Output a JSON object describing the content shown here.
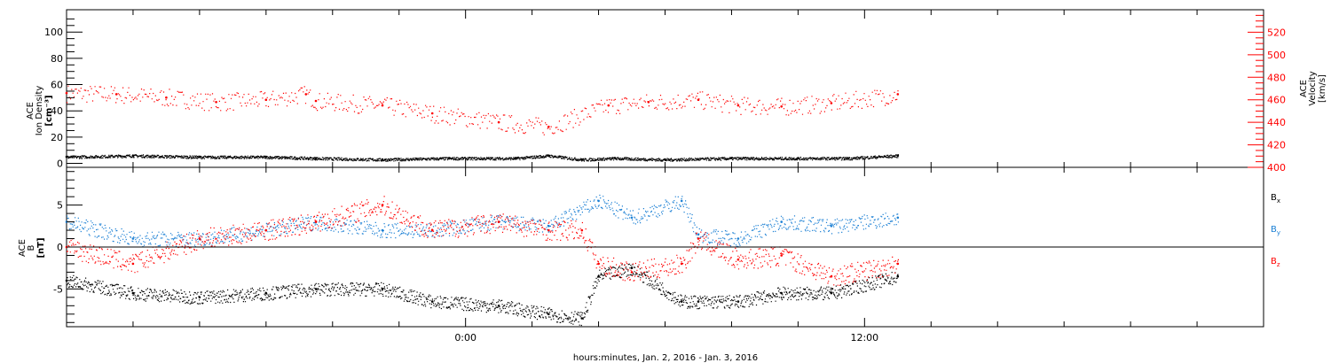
{
  "chart_data": [
    {
      "type": "scatter",
      "panel": "top",
      "ylabel_left": [
        "ACE",
        "Ion Density",
        "[cm⁻³]"
      ],
      "ylabel_right": [
        "ACE",
        "Velocity",
        "[km/s]"
      ],
      "xlim_hours": [
        -12,
        24
      ],
      "ylim_left": [
        -3,
        117
      ],
      "ylim_right": [
        400,
        540
      ],
      "left_ticks": [
        "0",
        "20",
        "40",
        "60",
        "80",
        "100"
      ],
      "left_tick_values": [
        0,
        20,
        40,
        60,
        80,
        100
      ],
      "right_ticks": [
        "400",
        "420",
        "440",
        "460",
        "480",
        "500",
        "520"
      ],
      "right_tick_values": [
        400,
        420,
        440,
        460,
        480,
        500,
        520
      ],
      "grid": false,
      "series": [
        {
          "name": "Density",
          "color": "#000000",
          "axis": "left",
          "x": [
            -12,
            -10,
            -8,
            -6,
            -4.5,
            -2.5,
            -0.5,
            1.5,
            2.5,
            3.5,
            4.5,
            6,
            8,
            10,
            11.5,
            13
          ],
          "y": [
            5,
            6,
            5,
            5,
            4,
            3,
            4,
            4,
            6,
            3,
            4,
            3,
            4,
            4,
            4,
            6
          ]
        },
        {
          "name": "Velocity",
          "color": "#ff0000",
          "axis": "right",
          "x": [
            -12,
            -10.5,
            -9,
            -7.5,
            -6,
            -4.8,
            -4.5,
            -2.5,
            -1,
            1,
            2.5,
            4.3,
            5.5,
            7,
            8.2,
            9.5,
            11,
            13
          ],
          "y": [
            466,
            465,
            462,
            458,
            460,
            465,
            459,
            455,
            448,
            440,
            436,
            455,
            458,
            460,
            455,
            454,
            457,
            465
          ]
        }
      ]
    },
    {
      "type": "scatter",
      "panel": "bottom",
      "ylabel_left": [
        "ACE",
        "B",
        "[nT]"
      ],
      "xlim_hours": [
        -12,
        24
      ],
      "ylim": [
        -9.5,
        9.5
      ],
      "zero_line": true,
      "left_ticks": [
        "-5",
        "0",
        "5"
      ],
      "left_tick_values": [
        -5,
        0,
        5
      ],
      "legend_placement": "right",
      "grid": false,
      "series": [
        {
          "name": "Bx",
          "color": "#000000",
          "x": [
            -12,
            -10,
            -8,
            -6,
            -4.5,
            -2.5,
            -1,
            1,
            2.5,
            3.5,
            4,
            5,
            6.5,
            7,
            8.2,
            9.5,
            11,
            13
          ],
          "y": [
            -4,
            -5.5,
            -6,
            -5.5,
            -5,
            -5,
            -6.5,
            -7,
            -8,
            -8.5,
            -3.5,
            -2.5,
            -6.5,
            -6.5,
            -6.5,
            -5.5,
            -5.5,
            -3.5
          ]
        },
        {
          "name": "By",
          "color": "#1a7fd4",
          "x": [
            -12,
            -10,
            -8,
            -6,
            -4.5,
            -2.5,
            -1,
            1,
            2.5,
            4,
            5,
            6.5,
            7,
            8.2,
            9.5,
            11,
            13
          ],
          "y": [
            3,
            1,
            1,
            2,
            3,
            2,
            2,
            3,
            2.5,
            5.5,
            3.5,
            5.5,
            1.5,
            1,
            3,
            2.5,
            3.5
          ]
        },
        {
          "name": "Bz",
          "color": "#ff0000",
          "x": [
            -12,
            -10,
            -8,
            -6,
            -4.5,
            -2.5,
            -1,
            1,
            2.5,
            3.5,
            4,
            5,
            6.5,
            7,
            8.2,
            9.5,
            11,
            13
          ],
          "y": [
            0,
            -2,
            1,
            2,
            3,
            5,
            2,
            3,
            2,
            2,
            -2,
            -3,
            -2,
            1,
            -1.5,
            -1,
            -3.5,
            -2
          ]
        }
      ],
      "legend": [
        "B",
        "B",
        "B"
      ],
      "legend_subscripts": [
        "x",
        "y",
        "z"
      ]
    }
  ],
  "xaxis": {
    "tick_hours": [
      -12,
      -10,
      -8,
      -6,
      -4,
      -2,
      0,
      2,
      4,
      6,
      8,
      10,
      12,
      14,
      16,
      18,
      20,
      22,
      24
    ],
    "labels": [
      {
        "hour": 0,
        "text": "0:00"
      },
      {
        "hour": 12,
        "text": "12:00"
      }
    ],
    "title": "hours:minutes, Jan.  2, 2016 - Jan.  3, 2016"
  }
}
